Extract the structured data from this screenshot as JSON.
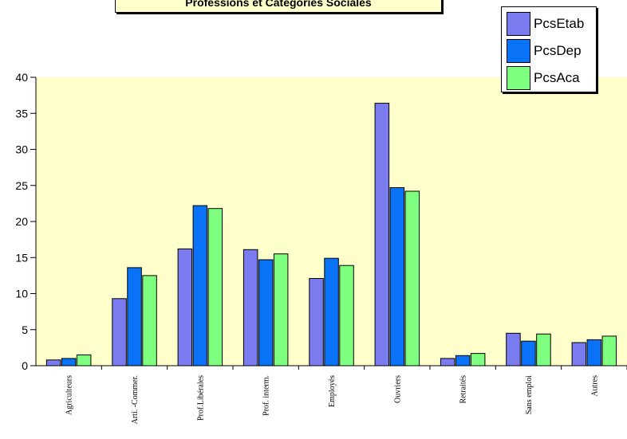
{
  "chart_data": {
    "type": "bar",
    "title": "Professions et Catégories Sociales",
    "categories": [
      "Agriculteurs",
      "Arti. -Commer.",
      "Prof.Libérales",
      "Prof. interm.",
      "Employés",
      "Ouvriers",
      "Retraités",
      "Sans emploi",
      "Autres"
    ],
    "series": [
      {
        "name": "PcsEtab",
        "color": "#7b7bf0",
        "values": [
          0.8,
          9.3,
          16.2,
          16.1,
          12.1,
          36.4,
          1.0,
          4.5,
          3.2
        ]
      },
      {
        "name": "PcsDep",
        "color": "#0a72f6",
        "values": [
          1.0,
          13.6,
          22.2,
          14.7,
          14.9,
          24.7,
          1.4,
          3.4,
          3.6
        ]
      },
      {
        "name": "PcsAca",
        "color": "#7fff7f",
        "values": [
          1.5,
          12.5,
          21.8,
          15.5,
          13.9,
          24.2,
          1.7,
          4.4,
          4.1
        ]
      }
    ],
    "ylim": [
      0,
      40
    ],
    "yticks": [
      "0",
      "5",
      "10",
      "15",
      "20",
      "25",
      "30",
      "35",
      "40"
    ],
    "grid": false,
    "legend_position": "top-right",
    "plot_background": "#ffffcc"
  }
}
